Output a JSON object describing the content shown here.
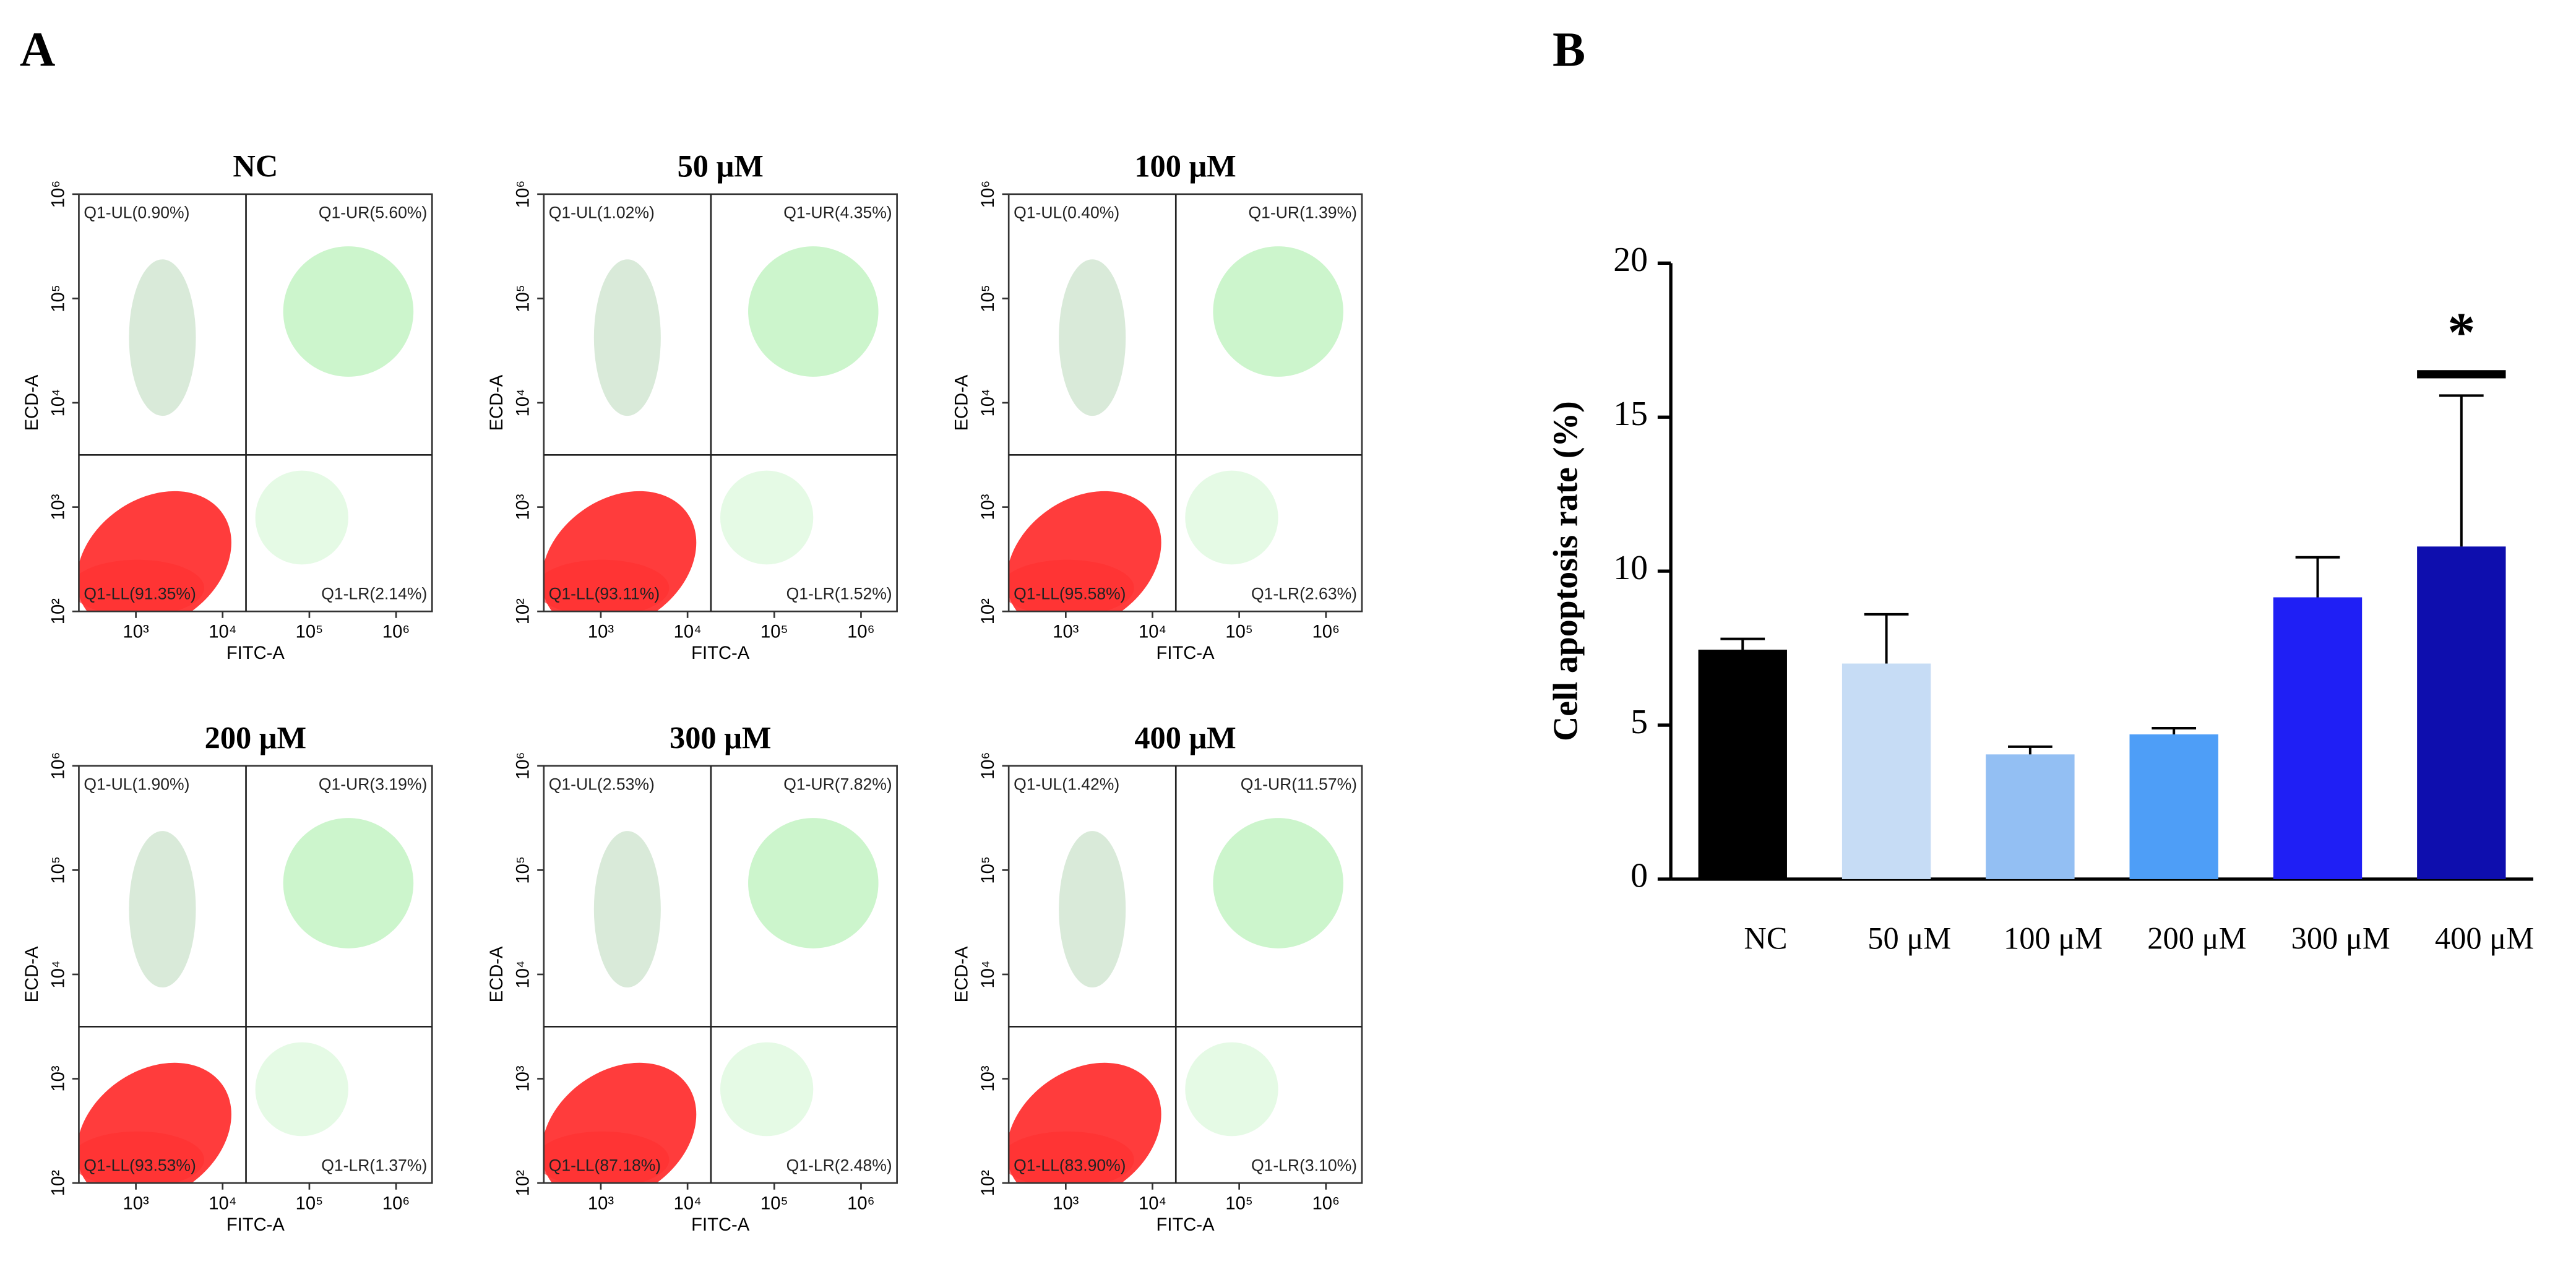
{
  "panel_labels": [
    "A",
    "B"
  ],
  "chart_data": [
    {
      "type": "flow",
      "title": "NC",
      "x_label": "FITC-A",
      "y_label": "ECD-A",
      "log_x": true,
      "log_y": true,
      "xlim": [
        220,
        2600000
      ],
      "ylim": [
        100,
        1000000
      ],
      "gate": [
        18600,
        3160
      ],
      "xticks": [
        {
          "value": 1000,
          "label": "10³"
        },
        {
          "value": 10000,
          "label": "10⁴"
        },
        {
          "value": 100000,
          "label": "10⁵"
        },
        {
          "value": 1000000,
          "label": "10⁶"
        }
      ],
      "yticks": [
        {
          "value": 100,
          "label": "10²"
        },
        {
          "value": 1000,
          "label": "10³"
        },
        {
          "value": 10000,
          "label": "10⁴"
        },
        {
          "value": 100000,
          "label": "10⁵"
        },
        {
          "value": 1000000,
          "label": "10⁶"
        }
      ],
      "quadrants": [
        "Q1-UL(0.90%)",
        "Q1-UR(5.60%)",
        "Q1-LL(91.35%)",
        "Q1-LR(2.14%)"
      ]
    },
    {
      "type": "flow",
      "title": "50 μM",
      "x_label": "FITC-A",
      "y_label": "ECD-A",
      "log_x": true,
      "log_y": true,
      "xlim": [
        220,
        2600000
      ],
      "ylim": [
        100,
        1000000
      ],
      "gate": [
        18600,
        3160
      ],
      "xticks": [
        {
          "value": 1000,
          "label": "10³"
        },
        {
          "value": 10000,
          "label": "10⁴"
        },
        {
          "value": 100000,
          "label": "10⁵"
        },
        {
          "value": 1000000,
          "label": "10⁶"
        }
      ],
      "yticks": [
        {
          "value": 100,
          "label": "10²"
        },
        {
          "value": 1000,
          "label": "10³"
        },
        {
          "value": 10000,
          "label": "10⁴"
        },
        {
          "value": 100000,
          "label": "10⁵"
        },
        {
          "value": 1000000,
          "label": "10⁶"
        }
      ],
      "quadrants": [
        "Q1-UL(1.02%)",
        "Q1-UR(4.35%)",
        "Q1-LL(93.11%)",
        "Q1-LR(1.52%)"
      ]
    },
    {
      "type": "flow",
      "title": "100 μM",
      "x_label": "FITC-A",
      "y_label": "ECD-A",
      "log_x": true,
      "log_y": true,
      "xlim": [
        220,
        2600000
      ],
      "ylim": [
        100,
        1000000
      ],
      "gate": [
        18600,
        3160
      ],
      "xticks": [
        {
          "value": 1000,
          "label": "10³"
        },
        {
          "value": 10000,
          "label": "10⁴"
        },
        {
          "value": 100000,
          "label": "10⁵"
        },
        {
          "value": 1000000,
          "label": "10⁶"
        }
      ],
      "yticks": [
        {
          "value": 100,
          "label": "10²"
        },
        {
          "value": 1000,
          "label": "10³"
        },
        {
          "value": 10000,
          "label": "10⁴"
        },
        {
          "value": 100000,
          "label": "10⁵"
        },
        {
          "value": 1000000,
          "label": "10⁶"
        }
      ],
      "quadrants": [
        "Q1-UL(0.40%)",
        "Q1-UR(1.39%)",
        "Q1-LL(95.58%)",
        "Q1-LR(2.63%)"
      ]
    },
    {
      "type": "flow",
      "title": "200 μM",
      "x_label": "FITC-A",
      "y_label": "ECD-A",
      "log_x": true,
      "log_y": true,
      "xlim": [
        220,
        2600000
      ],
      "ylim": [
        100,
        1000000
      ],
      "gate": [
        18600,
        3160
      ],
      "xticks": [
        {
          "value": 1000,
          "label": "10³"
        },
        {
          "value": 10000,
          "label": "10⁴"
        },
        {
          "value": 100000,
          "label": "10⁵"
        },
        {
          "value": 1000000,
          "label": "10⁶"
        }
      ],
      "yticks": [
        {
          "value": 100,
          "label": "10²"
        },
        {
          "value": 1000,
          "label": "10³"
        },
        {
          "value": 10000,
          "label": "10⁴"
        },
        {
          "value": 100000,
          "label": "10⁵"
        },
        {
          "value": 1000000,
          "label": "10⁶"
        }
      ],
      "quadrants": [
        "Q1-UL(1.90%)",
        "Q1-UR(3.19%)",
        "Q1-LL(93.53%)",
        "Q1-LR(1.37%)"
      ]
    },
    {
      "type": "flow",
      "title": "300 μM",
      "x_label": "FITC-A",
      "y_label": "ECD-A",
      "log_x": true,
      "log_y": true,
      "xlim": [
        220,
        2600000
      ],
      "ylim": [
        100,
        1000000
      ],
      "gate": [
        18600,
        3160
      ],
      "xticks": [
        {
          "value": 1000,
          "label": "10³"
        },
        {
          "value": 10000,
          "label": "10⁴"
        },
        {
          "value": 100000,
          "label": "10⁵"
        },
        {
          "value": 1000000,
          "label": "10⁶"
        }
      ],
      "yticks": [
        {
          "value": 100,
          "label": "10²"
        },
        {
          "value": 1000,
          "label": "10³"
        },
        {
          "value": 10000,
          "label": "10⁴"
        },
        {
          "value": 100000,
          "label": "10⁵"
        },
        {
          "value": 1000000,
          "label": "10⁶"
        }
      ],
      "quadrants": [
        "Q1-UL(2.53%)",
        "Q1-UR(7.82%)",
        "Q1-LL(87.18%)",
        "Q1-LR(2.48%)"
      ]
    },
    {
      "type": "flow",
      "title": "400 μM",
      "x_label": "FITC-A",
      "y_label": "ECD-A",
      "log_x": true,
      "log_y": true,
      "xlim": [
        220,
        2600000
      ],
      "ylim": [
        100,
        1000000
      ],
      "gate": [
        18600,
        3160
      ],
      "xticks": [
        {
          "value": 1000,
          "label": "10³"
        },
        {
          "value": 10000,
          "label": "10⁴"
        },
        {
          "value": 100000,
          "label": "10⁵"
        },
        {
          "value": 1000000,
          "label": "10⁶"
        }
      ],
      "yticks": [
        {
          "value": 100,
          "label": "10²"
        },
        {
          "value": 1000,
          "label": "10³"
        },
        {
          "value": 10000,
          "label": "10⁴"
        },
        {
          "value": 100000,
          "label": "10⁵"
        },
        {
          "value": 1000000,
          "label": "10⁶"
        }
      ],
      "quadrants": [
        "Q1-UL(1.42%)",
        "Q1-UR(11.57%)",
        "Q1-LL(83.90%)",
        "Q1-LR(3.10%)"
      ]
    },
    {
      "type": "bar",
      "y_label": "Cell apoptosis rate (%)",
      "categories": [
        "NC",
        "50 μM",
        "100 μM",
        "200 μM",
        "300 μM",
        "400 μM"
      ],
      "values": [
        7.45,
        7.0,
        4.05,
        4.7,
        9.15,
        10.8
      ],
      "errors": [
        0.35,
        1.6,
        0.25,
        0.2,
        1.3,
        4.9
      ],
      "colors": [
        "#000000",
        "#c6dcf5",
        "#93bff3",
        "#4e9ef7",
        "#1f1ff5",
        "#0e0eae"
      ],
      "ylim": [
        0,
        20
      ],
      "yticks": [
        0,
        5,
        10,
        15,
        20
      ],
      "annotation": "*"
    }
  ]
}
